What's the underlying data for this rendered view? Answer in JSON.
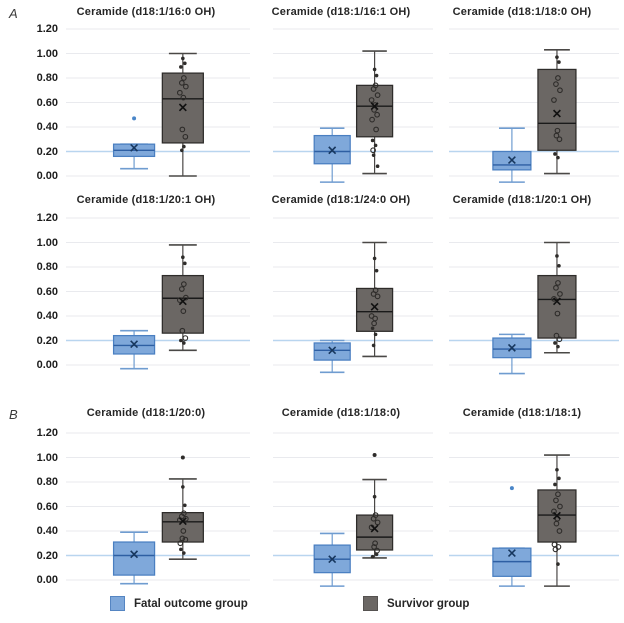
{
  "figure": {
    "panel_a_label": "A",
    "panel_b_label": "B",
    "background": "#ffffff"
  },
  "colors": {
    "fatal_box_fill": "#7fa8da",
    "fatal_box_edge": "#4a7fc1",
    "fatal_median": "#2e5fa3",
    "fatal_whisker": "#6f9cd0",
    "fatal_mean_marker": "#17375e",
    "fatal_outlier_dot": "#4a86c8",
    "survivor_box_fill": "#6b6764",
    "survivor_box_edge": "#2e2c2a",
    "survivor_median": "#1a1a1a",
    "survivor_whisker": "#4a4846",
    "survivor_mean_marker": "#111111",
    "survivor_dot": "#2e2c2a",
    "gridline": "#e9eaee",
    "reference_line": "#b9d5ef",
    "title_text": "#262626"
  },
  "legend": {
    "items": [
      {
        "label": "Fatal outcome group",
        "color": "#7fa8da",
        "border": "#5585c2"
      },
      {
        "label": "Survivor group",
        "color": "#6b6764",
        "border": "#555250"
      }
    ]
  },
  "chart_data": {
    "type": "boxplot-grid",
    "rows": 3,
    "cols": 3,
    "ylim": [
      0,
      1.2
    ],
    "y_tick_step": 0.2,
    "y_ticks": [
      "1.20",
      "1.00",
      "0.80",
      "0.60",
      "0.40",
      "0.20",
      "0.00"
    ],
    "reference_line_y": 0.2,
    "grid": true,
    "legend_position": "bottom",
    "groups": [
      "Fatal outcome group",
      "Survivor group"
    ],
    "charts": [
      {
        "panel": "A",
        "title": "Ceramide (d18:1/16:0 OH)",
        "fatal": {
          "whisker_low": 0.06,
          "q1": 0.16,
          "median": 0.21,
          "q3": 0.26,
          "whisker_high": 0.26,
          "mean": 0.23,
          "outliers": [
            0.47
          ]
        },
        "survivor": {
          "whisker_low": 0.0,
          "q1": 0.27,
          "median": 0.63,
          "q3": 0.84,
          "whisker_high": 1.0,
          "mean": 0.56,
          "outliers": [],
          "points_filled": [
            0.96,
            0.92,
            0.89,
            0.24,
            0.21
          ],
          "points_open": [
            0.8,
            0.76,
            0.73,
            0.68,
            0.64,
            0.38,
            0.32
          ]
        }
      },
      {
        "panel": "A",
        "title": "Ceramide (d18:1/16:1 OH)",
        "fatal": {
          "whisker_low": -0.05,
          "q1": 0.1,
          "median": 0.2,
          "q3": 0.33,
          "whisker_high": 0.39,
          "mean": 0.21,
          "outliers": []
        },
        "survivor": {
          "whisker_low": 0.02,
          "q1": 0.32,
          "median": 0.57,
          "q3": 0.74,
          "whisker_high": 1.02,
          "mean": 0.57,
          "outliers": [],
          "points_filled": [
            0.87,
            0.82,
            0.29,
            0.25,
            0.17,
            0.08
          ],
          "points_open": [
            0.74,
            0.71,
            0.66,
            0.62,
            0.58,
            0.54,
            0.5,
            0.46,
            0.38,
            0.21
          ]
        }
      },
      {
        "panel": "A",
        "title": "Ceramide (d18:1/18:0 OH)",
        "fatal": {
          "whisker_low": -0.05,
          "q1": 0.05,
          "median": 0.09,
          "q3": 0.2,
          "whisker_high": 0.39,
          "mean": 0.13,
          "outliers": []
        },
        "survivor": {
          "whisker_low": 0.02,
          "q1": 0.21,
          "median": 0.43,
          "q3": 0.87,
          "whisker_high": 1.03,
          "mean": 0.51,
          "outliers": [],
          "points_filled": [
            0.97,
            0.93,
            0.18,
            0.15
          ],
          "points_open": [
            0.8,
            0.75,
            0.7,
            0.62,
            0.37,
            0.33,
            0.3
          ]
        }
      },
      {
        "panel": "A",
        "title": "Ceramide (d18:1/20:1 OH)",
        "fatal": {
          "whisker_low": -0.03,
          "q1": 0.09,
          "median": 0.16,
          "q3": 0.24,
          "whisker_high": 0.28,
          "mean": 0.17,
          "outliers": []
        },
        "survivor": {
          "whisker_low": 0.12,
          "q1": 0.26,
          "median": 0.545,
          "q3": 0.73,
          "whisker_high": 0.98,
          "mean": 0.52,
          "outliers": [],
          "points_filled": [
            0.88,
            0.83,
            0.2,
            0.18
          ],
          "points_open": [
            0.66,
            0.62,
            0.55,
            0.53,
            0.44,
            0.28,
            0.22
          ]
        }
      },
      {
        "panel": "A",
        "title": "Ceramide (d18:1/24:0 OH)",
        "fatal": {
          "whisker_low": -0.06,
          "q1": 0.04,
          "median": 0.12,
          "q3": 0.18,
          "whisker_high": 0.2,
          "mean": 0.12,
          "outliers": []
        },
        "survivor": {
          "whisker_low": 0.07,
          "q1": 0.275,
          "median": 0.435,
          "q3": 0.625,
          "whisker_high": 1.0,
          "mean": 0.475,
          "outliers": [],
          "points_filled": [
            0.87,
            0.77,
            0.3,
            0.25,
            0.16
          ],
          "points_open": [
            0.61,
            0.58,
            0.56,
            0.4,
            0.38,
            0.34
          ]
        }
      },
      {
        "panel": "A",
        "title": "Ceramide (d18:1/20:1 OH)",
        "fatal": {
          "whisker_low": -0.07,
          "q1": 0.06,
          "median": 0.13,
          "q3": 0.22,
          "whisker_high": 0.25,
          "mean": 0.14,
          "outliers": []
        },
        "survivor": {
          "whisker_low": 0.1,
          "q1": 0.22,
          "median": 0.535,
          "q3": 0.73,
          "whisker_high": 1.0,
          "mean": 0.52,
          "outliers": [],
          "points_filled": [
            0.89,
            0.81,
            0.18,
            0.15
          ],
          "points_open": [
            0.67,
            0.63,
            0.58,
            0.54,
            0.42,
            0.24,
            0.21
          ]
        }
      },
      {
        "panel": "B",
        "title": "Ceramide (d18:1/20:0)",
        "fatal": {
          "whisker_low": -0.03,
          "q1": 0.04,
          "median": 0.2,
          "q3": 0.31,
          "whisker_high": 0.39,
          "mean": 0.21,
          "outliers": []
        },
        "survivor": {
          "whisker_low": 0.17,
          "q1": 0.31,
          "median": 0.475,
          "q3": 0.55,
          "whisker_high": 0.825,
          "mean": 0.48,
          "outliers": [
            1.0
          ],
          "points_filled": [
            0.76,
            0.61,
            0.25,
            0.22
          ],
          "points_open": [
            0.545,
            0.52,
            0.5,
            0.49,
            0.4,
            0.34,
            0.33,
            0.3
          ]
        }
      },
      {
        "panel": "B",
        "title": "Ceramide (d18:1/18:0)",
        "fatal": {
          "whisker_low": -0.05,
          "q1": 0.06,
          "median": 0.17,
          "q3": 0.285,
          "whisker_high": 0.38,
          "mean": 0.17,
          "outliers": []
        },
        "survivor": {
          "whisker_low": 0.18,
          "q1": 0.245,
          "median": 0.35,
          "q3": 0.53,
          "whisker_high": 0.82,
          "mean": 0.42,
          "outliers": [
            1.02
          ],
          "points_filled": [
            0.68,
            0.21,
            0.19
          ],
          "points_open": [
            0.53,
            0.5,
            0.47,
            0.43,
            0.3,
            0.27,
            0.24
          ]
        }
      },
      {
        "panel": "B",
        "title": "Ceramide (d18:1/18:1)",
        "fatal": {
          "whisker_low": -0.05,
          "q1": 0.03,
          "median": 0.15,
          "q3": 0.26,
          "whisker_high": 0.26,
          "mean": 0.22,
          "outliers": [
            0.75
          ]
        },
        "survivor": {
          "whisker_low": -0.05,
          "q1": 0.31,
          "median": 0.53,
          "q3": 0.735,
          "whisker_high": 1.02,
          "mean": 0.525,
          "outliers": [],
          "points_filled": [
            0.9,
            0.83,
            0.78,
            0.13
          ],
          "points_open": [
            0.7,
            0.65,
            0.6,
            0.56,
            0.5,
            0.46,
            0.4,
            0.29,
            0.27,
            0.25
          ]
        }
      }
    ]
  }
}
